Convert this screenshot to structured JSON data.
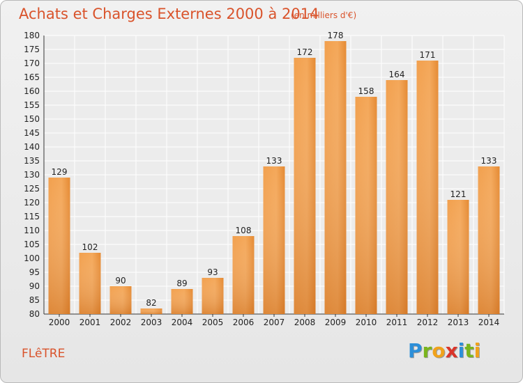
{
  "header": {
    "title": "Achats et Charges Externes 2000 à 2014",
    "subtitle": "(en milliers d'€)"
  },
  "footer": {
    "commune": "FLêTRE",
    "logo_letters": [
      {
        "ch": "P",
        "color": "#2c8fd9"
      },
      {
        "ch": "r",
        "color": "#7ab51d"
      },
      {
        "ch": "o",
        "color": "#f0a21b"
      },
      {
        "ch": "x",
        "color": "#d9352b"
      },
      {
        "ch": "i",
        "color": "#2c8fd9"
      },
      {
        "ch": "t",
        "color": "#7ab51d"
      },
      {
        "ch": "i",
        "color": "#f0a21b"
      }
    ]
  },
  "chart_data": {
    "type": "bar",
    "categories": [
      "2000",
      "2001",
      "2002",
      "2003",
      "2004",
      "2005",
      "2006",
      "2007",
      "2008",
      "2009",
      "2010",
      "2011",
      "2012",
      "2013",
      "2014"
    ],
    "values": [
      129,
      102,
      90,
      82,
      89,
      93,
      108,
      133,
      172,
      178,
      158,
      164,
      171,
      121,
      133
    ],
    "title": "Achats et Charges Externes 2000 à 2014",
    "subtitle": "(en milliers d'€)",
    "xlabel": "",
    "ylabel": "",
    "ylim": [
      80,
      180
    ],
    "yticks": [
      80,
      85,
      90,
      95,
      100,
      105,
      110,
      115,
      120,
      125,
      130,
      135,
      140,
      145,
      150,
      155,
      160,
      165,
      170,
      175,
      180
    ],
    "grid": true,
    "bar_color": "#e8812a",
    "bar_color_light": "#f6a552"
  }
}
